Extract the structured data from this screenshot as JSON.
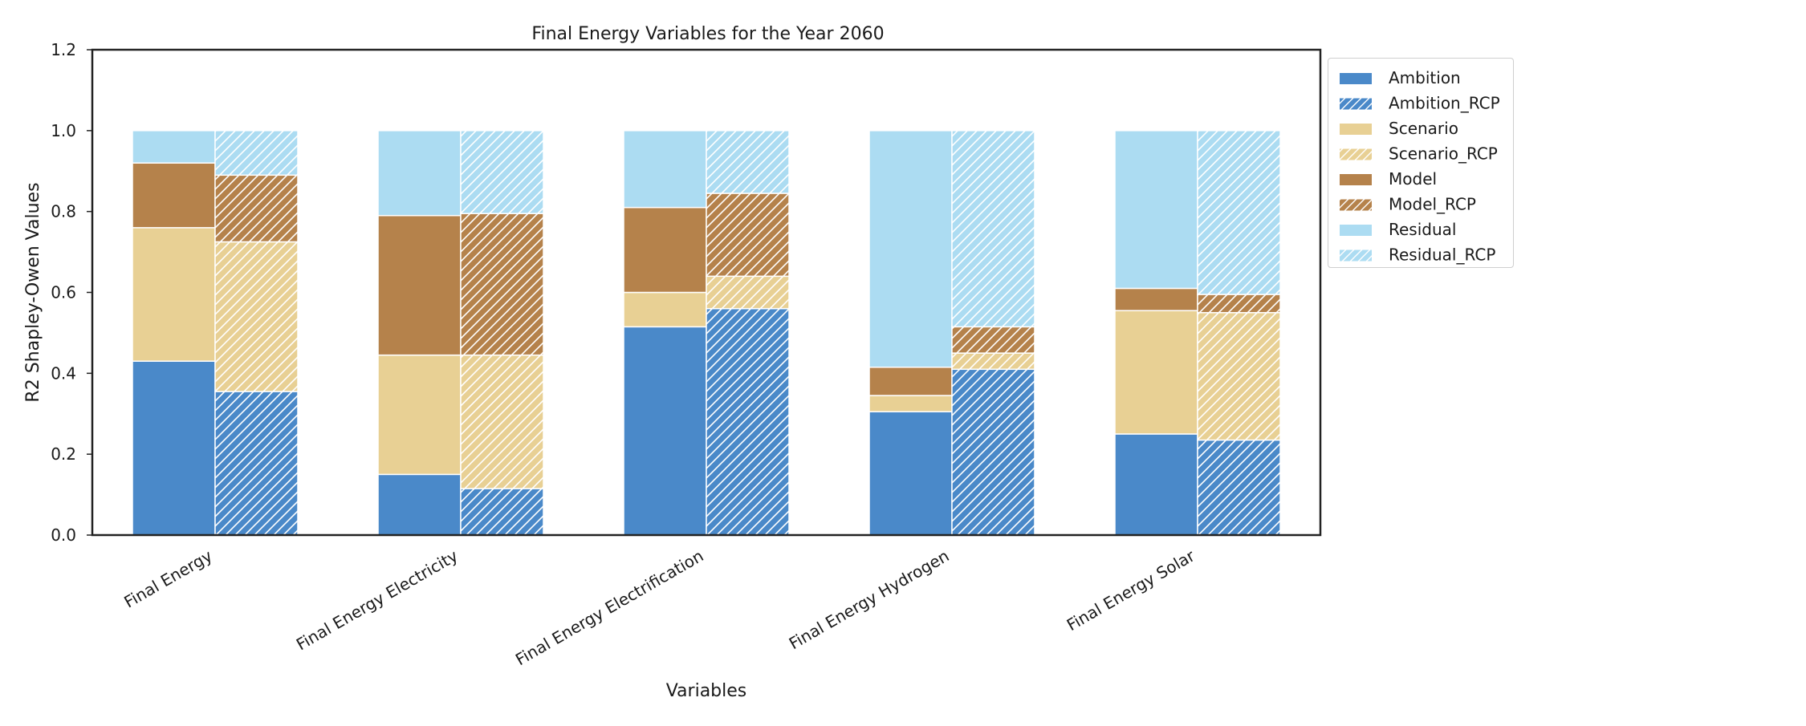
{
  "chart_data": {
    "type": "bar",
    "title": "Final Energy Variables for the Year 2060",
    "xlabel": "Variables",
    "ylabel": "R2 Shapley-Owen Values",
    "ylim": [
      0,
      1.2
    ],
    "yticks": [
      "0.0",
      "0.2",
      "0.4",
      "0.6",
      "0.8",
      "1.0",
      "1.2"
    ],
    "categories": [
      "Final Energy",
      "Final Energy Electricity",
      "Final Energy Electrification",
      "Final Energy Hydrogen",
      "Final Energy Solar"
    ],
    "stacked": true,
    "grid": false,
    "legend_position": "outside-right",
    "series": [
      {
        "name": "Ambition",
        "group": "base",
        "color": "#4a89c9",
        "hatch": false,
        "values": [
          0.43,
          0.15,
          0.515,
          0.305,
          0.25
        ]
      },
      {
        "name": "Ambition_RCP",
        "group": "rcp",
        "color": "#4a89c9",
        "hatch": true,
        "values": [
          0.355,
          0.115,
          0.56,
          0.41,
          0.235
        ]
      },
      {
        "name": "Scenario",
        "group": "base",
        "color": "#e8d094",
        "hatch": false,
        "values": [
          0.33,
          0.295,
          0.085,
          0.04,
          0.305
        ]
      },
      {
        "name": "Scenario_RCP",
        "group": "rcp",
        "color": "#e8d094",
        "hatch": true,
        "values": [
          0.37,
          0.33,
          0.08,
          0.04,
          0.315
        ]
      },
      {
        "name": "Model",
        "group": "base",
        "color": "#b5824b",
        "hatch": false,
        "values": [
          0.16,
          0.345,
          0.21,
          0.07,
          0.055
        ]
      },
      {
        "name": "Model_RCP",
        "group": "rcp",
        "color": "#b5824b",
        "hatch": true,
        "values": [
          0.165,
          0.35,
          0.205,
          0.065,
          0.045
        ]
      },
      {
        "name": "Residual",
        "group": "base",
        "color": "#acdcf2",
        "hatch": false,
        "values": [
          0.08,
          0.21,
          0.19,
          0.585,
          0.39
        ]
      },
      {
        "name": "Residual_RCP",
        "group": "rcp",
        "color": "#acdcf2",
        "hatch": true,
        "values": [
          0.11,
          0.205,
          0.155,
          0.485,
          0.405
        ]
      }
    ]
  }
}
